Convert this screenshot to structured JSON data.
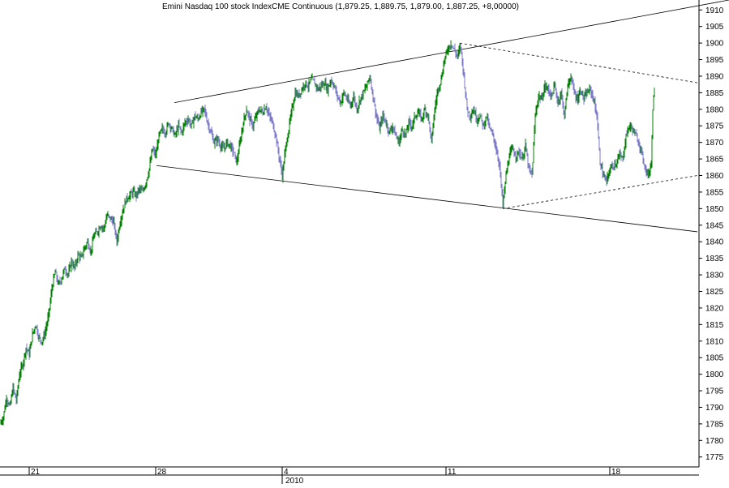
{
  "title": "Emini Nasdaq 100 stock IndexCME Continuous (1,879.25, 1,889.75, 1,879.00, 1,887.25, +8,00000)",
  "x_axis": {
    "day_labels": [
      "21",
      "28",
      "4",
      "11",
      "18"
    ],
    "year_label": "2010"
  },
  "colors": {
    "up": "#008000",
    "down": "#7a7ac8",
    "trendline": "#000000",
    "axis": "#000000"
  },
  "chart_data": {
    "type": "candlestick",
    "title": "Emini Nasdaq 100 stock IndexCME Continuous (1,879.25, 1,889.75, 1,879.00, 1,887.25, +8,00000)",
    "ylim": [
      1772,
      1913
    ],
    "y_ticks": [
      1775,
      1780,
      1785,
      1790,
      1795,
      1800,
      1805,
      1810,
      1815,
      1820,
      1825,
      1830,
      1835,
      1840,
      1845,
      1850,
      1855,
      1860,
      1865,
      1870,
      1875,
      1880,
      1885,
      1890,
      1895,
      1900,
      1905,
      1910
    ],
    "x_day_ticks": [
      "21",
      "28",
      "4",
      "11",
      "18"
    ],
    "year": "2010",
    "close_path": [
      [
        0,
        1785
      ],
      [
        4,
        1787
      ],
      [
        8,
        1793
      ],
      [
        12,
        1790
      ],
      [
        16,
        1796
      ],
      [
        20,
        1792
      ],
      [
        24,
        1800
      ],
      [
        28,
        1803
      ],
      [
        32,
        1808
      ],
      [
        36,
        1806
      ],
      [
        40,
        1812
      ],
      [
        44,
        1815
      ],
      [
        48,
        1811
      ],
      [
        52,
        1810
      ],
      [
        56,
        1813
      ],
      [
        60,
        1818
      ],
      [
        64,
        1826
      ],
      [
        68,
        1831
      ],
      [
        72,
        1827
      ],
      [
        76,
        1829
      ],
      [
        80,
        1832
      ],
      [
        84,
        1830
      ],
      [
        88,
        1834
      ],
      [
        92,
        1832
      ],
      [
        96,
        1836
      ],
      [
        100,
        1835
      ],
      [
        104,
        1838
      ],
      [
        108,
        1840
      ],
      [
        112,
        1837
      ],
      [
        116,
        1842
      ],
      [
        120,
        1843
      ],
      [
        124,
        1845
      ],
      [
        128,
        1844
      ],
      [
        132,
        1848
      ],
      [
        136,
        1847
      ],
      [
        140,
        1846
      ],
      [
        144,
        1840
      ],
      [
        148,
        1846
      ],
      [
        152,
        1850
      ],
      [
        156,
        1853
      ],
      [
        160,
        1854
      ],
      [
        164,
        1855
      ],
      [
        168,
        1854
      ],
      [
        172,
        1856
      ],
      [
        176,
        1855
      ],
      [
        180,
        1858
      ],
      [
        184,
        1862
      ],
      [
        188,
        1868
      ],
      [
        192,
        1866
      ],
      [
        196,
        1872
      ],
      [
        200,
        1874
      ],
      [
        204,
        1873
      ],
      [
        208,
        1876
      ],
      [
        212,
        1874
      ],
      [
        216,
        1872
      ],
      [
        220,
        1875
      ],
      [
        224,
        1873
      ],
      [
        228,
        1876
      ],
      [
        232,
        1877
      ],
      [
        236,
        1875
      ],
      [
        240,
        1878
      ],
      [
        244,
        1877
      ],
      [
        248,
        1879
      ],
      [
        252,
        1880
      ],
      [
        256,
        1876
      ],
      [
        260,
        1873
      ],
      [
        264,
        1870
      ],
      [
        268,
        1871
      ],
      [
        272,
        1869
      ],
      [
        276,
        1868
      ],
      [
        280,
        1870
      ],
      [
        284,
        1869
      ],
      [
        288,
        1867
      ],
      [
        292,
        1864
      ],
      [
        296,
        1870
      ],
      [
        300,
        1876
      ],
      [
        304,
        1880
      ],
      [
        308,
        1877
      ],
      [
        312,
        1875
      ],
      [
        316,
        1878
      ],
      [
        320,
        1880
      ],
      [
        324,
        1879
      ],
      [
        328,
        1881
      ],
      [
        332,
        1878
      ],
      [
        336,
        1876
      ],
      [
        340,
        1872
      ],
      [
        344,
        1866
      ],
      [
        348,
        1860
      ],
      [
        352,
        1868
      ],
      [
        356,
        1874
      ],
      [
        360,
        1880
      ],
      [
        364,
        1885
      ],
      [
        368,
        1884
      ],
      [
        372,
        1886
      ],
      [
        376,
        1888
      ],
      [
        380,
        1887
      ],
      [
        384,
        1889
      ],
      [
        388,
        1888
      ],
      [
        392,
        1886
      ],
      [
        396,
        1887
      ],
      [
        400,
        1888
      ],
      [
        404,
        1886
      ],
      [
        408,
        1889
      ],
      [
        412,
        1887
      ],
      [
        416,
        1884
      ],
      [
        420,
        1882
      ],
      [
        424,
        1885
      ],
      [
        428,
        1883
      ],
      [
        432,
        1881
      ],
      [
        436,
        1884
      ],
      [
        440,
        1880
      ],
      [
        444,
        1883
      ],
      [
        448,
        1885
      ],
      [
        452,
        1887
      ],
      [
        456,
        1890
      ],
      [
        460,
        1884
      ],
      [
        464,
        1878
      ],
      [
        468,
        1874
      ],
      [
        472,
        1878
      ],
      [
        476,
        1876
      ],
      [
        480,
        1873
      ],
      [
        484,
        1875
      ],
      [
        488,
        1872
      ],
      [
        492,
        1870
      ],
      [
        496,
        1874
      ],
      [
        500,
        1872
      ],
      [
        504,
        1876
      ],
      [
        508,
        1875
      ],
      [
        512,
        1878
      ],
      [
        516,
        1879
      ],
      [
        520,
        1877
      ],
      [
        524,
        1880
      ],
      [
        528,
        1878
      ],
      [
        532,
        1870
      ],
      [
        536,
        1880
      ],
      [
        540,
        1886
      ],
      [
        544,
        1889
      ],
      [
        548,
        1895
      ],
      [
        552,
        1898
      ],
      [
        556,
        1900
      ],
      [
        560,
        1898
      ],
      [
        564,
        1896
      ],
      [
        568,
        1899
      ],
      [
        572,
        1890
      ],
      [
        576,
        1880
      ],
      [
        580,
        1878
      ],
      [
        584,
        1880
      ],
      [
        588,
        1877
      ],
      [
        592,
        1878
      ],
      [
        596,
        1875
      ],
      [
        600,
        1878
      ],
      [
        604,
        1874
      ],
      [
        608,
        1872
      ],
      [
        612,
        1868
      ],
      [
        616,
        1863
      ],
      [
        620,
        1851
      ],
      [
        624,
        1860
      ],
      [
        628,
        1866
      ],
      [
        632,
        1868
      ],
      [
        636,
        1866
      ],
      [
        640,
        1867
      ],
      [
        644,
        1865
      ],
      [
        648,
        1869
      ],
      [
        652,
        1862
      ],
      [
        656,
        1860
      ],
      [
        660,
        1878
      ],
      [
        664,
        1884
      ],
      [
        668,
        1883
      ],
      [
        672,
        1887
      ],
      [
        676,
        1886
      ],
      [
        680,
        1884
      ],
      [
        684,
        1887
      ],
      [
        688,
        1882
      ],
      [
        692,
        1885
      ],
      [
        696,
        1878
      ],
      [
        700,
        1887
      ],
      [
        704,
        1890
      ],
      [
        708,
        1885
      ],
      [
        712,
        1883
      ],
      [
        716,
        1886
      ],
      [
        720,
        1883
      ],
      [
        724,
        1885
      ],
      [
        728,
        1886
      ],
      [
        732,
        1883
      ],
      [
        736,
        1878
      ],
      [
        740,
        1864
      ],
      [
        744,
        1860
      ],
      [
        748,
        1858
      ],
      [
        752,
        1862
      ],
      [
        756,
        1863
      ],
      [
        760,
        1864
      ],
      [
        764,
        1866
      ],
      [
        768,
        1865
      ],
      [
        772,
        1872
      ],
      [
        776,
        1875
      ],
      [
        780,
        1874
      ],
      [
        784,
        1872
      ],
      [
        788,
        1870
      ],
      [
        792,
        1866
      ],
      [
        796,
        1862
      ],
      [
        800,
        1860
      ],
      [
        803,
        1864
      ],
      [
        805,
        1880
      ],
      [
        807,
        1887
      ]
    ],
    "trendlines": [
      {
        "style": "solid",
        "from": [
          215,
          1882
        ],
        "to": [
          899,
          1913
        ]
      },
      {
        "style": "solid",
        "from": [
          193,
          1863
        ],
        "to": [
          860,
          1843
        ]
      },
      {
        "style": "dashed",
        "from": [
          567,
          1900
        ],
        "to": [
          860,
          1888
        ]
      },
      {
        "style": "dashed",
        "from": [
          620,
          1850
        ],
        "to": [
          860,
          1860
        ]
      }
    ]
  }
}
